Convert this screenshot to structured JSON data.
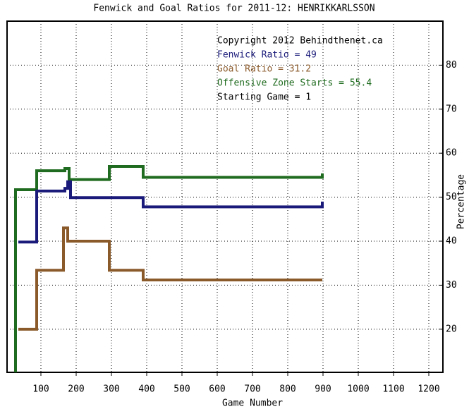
{
  "chart_data": {
    "type": "line",
    "title": "Fenwick and Goal Ratios for 2011-12: HENRIKKARLSSON",
    "x_label": "Game Number",
    "y_label": "Percentage",
    "annotations": [
      {
        "text": "Copyright 2012 Behindthenet.ca",
        "color": "#000000"
      },
      {
        "text": "Fenwick Ratio = 49",
        "color": "#1a1a7a"
      },
      {
        "text": "Goal Ratio = 31.2",
        "color": "#8b5a2b"
      },
      {
        "text": "Offensive Zone Starts = 55.4",
        "color": "#1f6b1f"
      },
      {
        "text": "Starting Game = 1",
        "color": "#000000"
      }
    ],
    "xlim": [
      4,
      1240
    ],
    "ylim": [
      10.2,
      90
    ],
    "xticks": [
      100,
      200,
      300,
      400,
      500,
      600,
      700,
      800,
      900,
      1000,
      1100,
      1200
    ],
    "yticks": [
      20,
      30,
      40,
      50,
      60,
      70,
      80
    ],
    "grid": true,
    "series": [
      {
        "color": "#1f6b1f",
        "x": [
          28,
          28,
          88,
          88,
          168,
          168,
          180,
          180,
          294,
          294,
          390,
          390,
          898,
          898
        ],
        "values": [
          10.2,
          51.7,
          51.7,
          56,
          56,
          56.5,
          56.5,
          54,
          54,
          57,
          57,
          54.5,
          54.5,
          55.4
        ]
      },
      {
        "color": "#1a1a7a",
        "x": [
          36,
          88,
          88,
          168,
          168,
          176,
          176,
          184,
          184,
          390,
          390,
          898,
          898
        ],
        "values": [
          39.8,
          39.8,
          51.4,
          51.4,
          52,
          52,
          53.5,
          53.5,
          49.9,
          49.9,
          47.8,
          47.8,
          49
        ]
      },
      {
        "color": "#8b5a2b",
        "x": [
          36,
          88,
          88,
          164,
          164,
          176,
          176,
          294,
          294,
          390,
          390,
          898
        ],
        "values": [
          20,
          20,
          33.4,
          33.4,
          43,
          43,
          40,
          40,
          33.4,
          33.4,
          31.2,
          31.2
        ]
      }
    ]
  }
}
